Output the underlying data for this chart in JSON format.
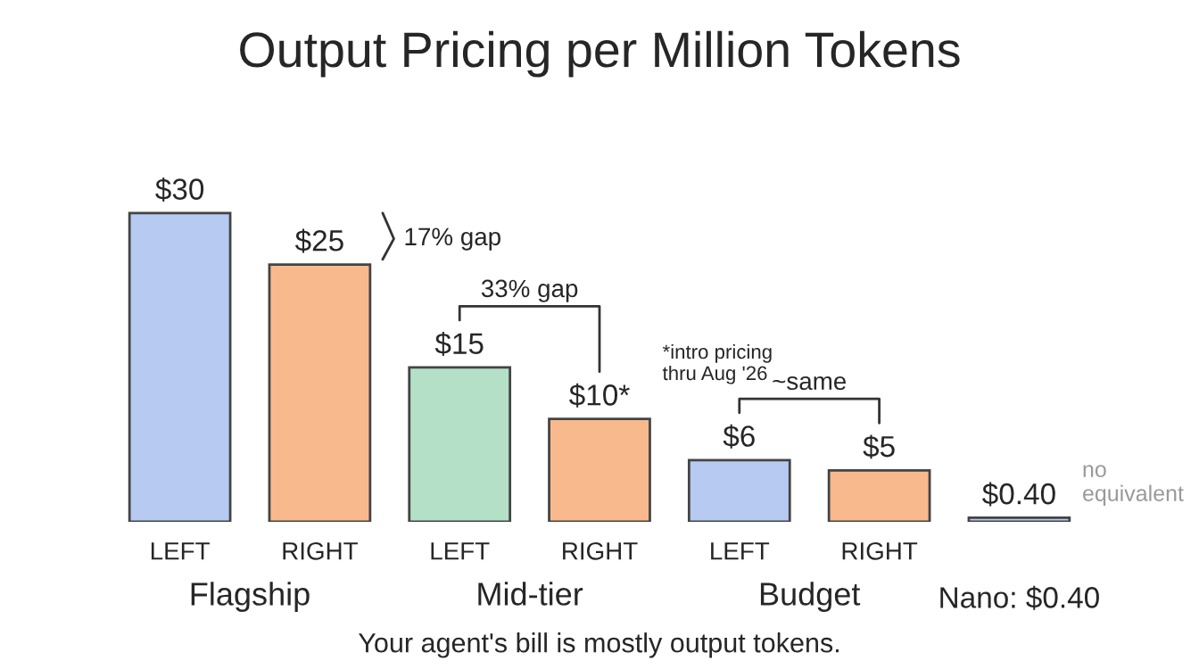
{
  "chart_data": {
    "type": "bar",
    "title": "Output Pricing per Million Tokens",
    "categories": [
      "LEFT",
      "RIGHT",
      "LEFT",
      "RIGHT",
      "LEFT",
      "RIGHT",
      "Nano: $0.40"
    ],
    "values": [
      30,
      25,
      15,
      10,
      6,
      5,
      0.4
    ],
    "colors": [
      "#b6caf2",
      "#f8b98c",
      "#b5e0c8",
      "#f8b98c",
      "#b6caf2",
      "#f8b98c",
      "#b6caf2"
    ],
    "value_labels": [
      "$30",
      "$25",
      "$15",
      "$10*",
      "$6",
      "$5",
      "$0.40"
    ],
    "annotations": [
      "17% gap",
      "33% gap",
      "*intro pricing\nthru Aug '26",
      "~same",
      "no\nequivalent",
      "Flagship",
      "Mid-tier",
      "Budget",
      "Your agent's bill is mostly output tokens."
    ],
    "grid": false,
    "legend": false
  }
}
